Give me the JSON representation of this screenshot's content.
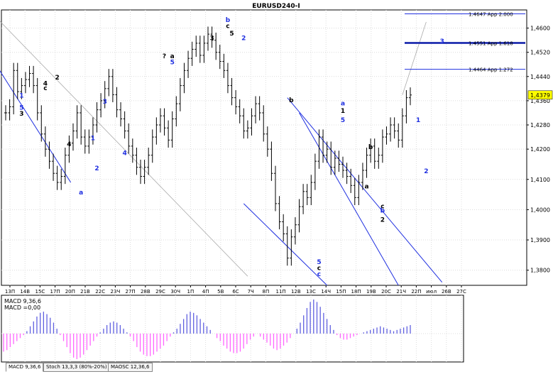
{
  "window": {
    "title": "EURUSD240-I"
  },
  "tabs": [
    {
      "label": "MACD 9,36,6",
      "active": true
    },
    {
      "label": "Stoch 13,3,3 (80%-20%)",
      "active": false
    },
    {
      "label": "MAOSC 12,36,6",
      "active": false
    }
  ],
  "indicator": {
    "label1": "MACD 9,36,6",
    "label2": "MACD =0,00"
  },
  "colors": {
    "grid": "#dcdcdc",
    "price": "#000000",
    "blue": "#1f2fe0",
    "darkBlue": "#0a1aa8",
    "macdPos": "#6060e0",
    "macdNeg": "#ff66ff",
    "projection": "#aaaaaa"
  },
  "chart_data": {
    "type": "line",
    "title": "EURUSD240-I",
    "ylim": [
      1.375,
      1.466
    ],
    "y_ticks": [
      "1,4600",
      "1,4520",
      "1,4440",
      "1,4360",
      "1,4280",
      "1,4200",
      "1,4100",
      "1,4000",
      "1,3900",
      "1,3800"
    ],
    "y_tick_values": [
      1.46,
      1.452,
      1.444,
      1.436,
      1.428,
      1.42,
      1.41,
      1.4,
      1.39,
      1.38
    ],
    "x_ticks": [
      "13П",
      "14В",
      "15С",
      "17П",
      "20П",
      "21В",
      "22С",
      "23Ч",
      "27П",
      "28В",
      "29С",
      "30Ч",
      "1П",
      "4П",
      "5В",
      "6С",
      "7Ч",
      "8П",
      "11П",
      "12В",
      "13С",
      "14Ч",
      "15П",
      "18П",
      "19В",
      "20С",
      "21Ч",
      "22П",
      "июл",
      "26В",
      "27С"
    ],
    "current_price": "1,4379",
    "current_price_value": 1.4379,
    "levels": [
      {
        "label": "1.4647 App 2.000",
        "value": 1.4647
      },
      {
        "label": "1.4551 App 1.618",
        "value": 1.4551
      },
      {
        "label": "1.4464 App 1.272",
        "value": 1.4464
      }
    ],
    "series": [
      {
        "values": [
          1.432,
          1.434,
          1.446,
          1.439,
          1.441,
          1.443,
          1.445,
          1.441,
          1.432,
          1.425,
          1.42,
          1.416,
          1.412,
          1.409,
          1.411,
          1.418,
          1.422,
          1.426,
          1.432,
          1.424,
          1.421,
          1.424,
          1.428,
          1.433,
          1.436,
          1.44,
          1.444,
          1.438,
          1.433,
          1.43,
          1.426,
          1.421,
          1.418,
          1.414,
          1.411,
          1.414,
          1.418,
          1.424,
          1.428,
          1.431,
          1.427,
          1.423,
          1.43,
          1.435,
          1.441,
          1.446,
          1.45,
          1.453,
          1.455,
          1.451,
          1.455,
          1.458,
          1.456,
          1.452,
          1.449,
          1.446,
          1.441,
          1.437,
          1.434,
          1.431,
          1.426,
          1.427,
          1.431,
          1.435,
          1.432,
          1.425,
          1.42,
          1.412,
          1.402,
          1.396,
          1.392,
          1.384,
          1.391,
          1.395,
          1.401,
          1.406,
          1.404,
          1.409,
          1.416,
          1.424,
          1.418,
          1.42,
          1.414,
          1.417,
          1.415,
          1.413,
          1.411,
          1.408,
          1.404,
          1.409,
          1.413,
          1.418,
          1.421,
          1.416,
          1.418,
          1.424,
          1.425,
          1.428,
          1.426,
          1.423,
          1.431,
          1.437,
          1.4379
        ]
      }
    ],
    "macd": [
      -0.012,
      -0.011,
      -0.009,
      -0.007,
      -0.005,
      -0.003,
      -0.001,
      0.002,
      0.006,
      0.01,
      0.014,
      0.017,
      0.018,
      0.016,
      0.013,
      0.009,
      0.004,
      -0.001,
      -0.005,
      -0.009,
      -0.013,
      -0.016,
      -0.017,
      -0.016,
      -0.014,
      -0.011,
      -0.008,
      -0.005,
      -0.002,
      0.001,
      0.004,
      0.007,
      0.009,
      0.01,
      0.009,
      0.007,
      0.004,
      0.001,
      -0.002,
      -0.005,
      -0.009,
      -0.012,
      -0.014,
      -0.015,
      -0.015,
      -0.014,
      -0.012,
      -0.01,
      -0.008,
      -0.005,
      -0.002,
      0.001,
      0.004,
      0.008,
      0.012,
      0.016,
      0.018,
      0.017,
      0.015,
      0.012,
      0.009,
      0.006,
      0.003,
      0.0,
      -0.003,
      -0.005,
      -0.008,
      -0.01,
      -0.012,
      -0.013,
      -0.013,
      -0.012,
      -0.01,
      -0.007,
      -0.004,
      -0.002,
      0.0,
      -0.002,
      -0.004,
      -0.006,
      -0.008,
      -0.01,
      -0.011,
      -0.01,
      -0.008,
      -0.006,
      -0.003,
      0.0,
      0.004,
      0.009,
      0.015,
      0.021,
      0.026,
      0.028,
      0.026,
      0.022,
      0.017,
      0.012,
      0.007,
      0.003,
      -0.001,
      -0.003,
      -0.004,
      -0.004,
      -0.003,
      -0.002,
      -0.001,
      0.0,
      0.001,
      0.002,
      0.003,
      0.004,
      0.005,
      0.006,
      0.005,
      0.004,
      0.003,
      0.002,
      0.003,
      0.004,
      0.005,
      0.006,
      0.007
    ],
    "wave_labels": [
      {
        "text": "4",
        "x": 10,
        "y": 1.441,
        "c": "black"
      },
      {
        "text": "c",
        "x": 10,
        "y": 1.4395,
        "c": "black"
      },
      {
        "text": "1",
        "x": 4,
        "y": 1.437,
        "c": "blue"
      },
      {
        "text": "5",
        "x": 4,
        "y": 1.433,
        "c": "blue"
      },
      {
        "text": "3",
        "x": 4,
        "y": 1.431,
        "c": "black"
      },
      {
        "text": "2",
        "x": 13,
        "y": 1.443,
        "c": "black"
      },
      {
        "text": "4",
        "x": 16,
        "y": 1.421,
        "c": "black"
      },
      {
        "text": "1",
        "x": 22,
        "y": 1.423,
        "c": "blue"
      },
      {
        "text": "3",
        "x": 25,
        "y": 1.435,
        "c": "blue"
      },
      {
        "text": "2",
        "x": 23,
        "y": 1.413,
        "c": "blue"
      },
      {
        "text": "a",
        "x": 19,
        "y": 1.405,
        "c": "blue"
      },
      {
        "text": "4",
        "x": 30,
        "y": 1.418,
        "c": "blue"
      },
      {
        "text": "?",
        "x": 40,
        "y": 1.45,
        "c": "black"
      },
      {
        "text": "a",
        "x": 42,
        "y": 1.45,
        "c": "black"
      },
      {
        "text": "5",
        "x": 42,
        "y": 1.448,
        "c": "blue"
      },
      {
        "text": "b",
        "x": 56,
        "y": 1.462,
        "c": "blue"
      },
      {
        "text": "c",
        "x": 56,
        "y": 1.46,
        "c": "black"
      },
      {
        "text": "3",
        "x": 52,
        "y": 1.456,
        "c": "black"
      },
      {
        "text": "5",
        "x": 57,
        "y": 1.4575,
        "c": "black"
      },
      {
        "text": "2",
        "x": 60,
        "y": 1.456,
        "c": "blue"
      },
      {
        "text": "b",
        "x": 72,
        "y": 1.4355,
        "c": "black"
      },
      {
        "text": "a",
        "x": 85,
        "y": 1.4345,
        "c": "blue"
      },
      {
        "text": "1",
        "x": 85,
        "y": 1.432,
        "c": "black"
      },
      {
        "text": "5",
        "x": 85,
        "y": 1.429,
        "c": "blue"
      },
      {
        "text": "b",
        "x": 92,
        "y": 1.42,
        "c": "black"
      },
      {
        "text": "a",
        "x": 91,
        "y": 1.407,
        "c": "black"
      },
      {
        "text": "c",
        "x": 95,
        "y": 1.4005,
        "c": "black"
      },
      {
        "text": "b",
        "x": 95,
        "y": 1.399,
        "c": "blue"
      },
      {
        "text": "2",
        "x": 95,
        "y": 1.396,
        "c": "black"
      },
      {
        "text": "5",
        "x": 79,
        "y": 1.382,
        "c": "blue"
      },
      {
        "text": "c",
        "x": 79,
        "y": 1.38,
        "c": "black"
      },
      {
        "text": "c",
        "x": 79,
        "y": 1.378,
        "c": "blue"
      },
      {
        "text": "3",
        "x": 110,
        "y": 1.455,
        "c": "blue"
      },
      {
        "text": "1",
        "x": 104,
        "y": 1.429,
        "c": "blue"
      },
      {
        "text": "2",
        "x": 106,
        "y": 1.412,
        "c": "blue"
      }
    ]
  }
}
